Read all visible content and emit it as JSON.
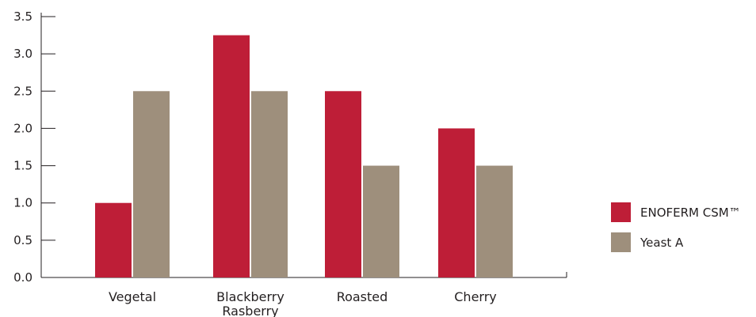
{
  "chart_data": {
    "type": "bar",
    "title": "",
    "xlabel": "",
    "ylabel": "",
    "categories": [
      [
        "Vegetal"
      ],
      [
        "Blackberry",
        "Rasberry"
      ],
      [
        "Roasted"
      ],
      [
        "Cherry"
      ]
    ],
    "series": [
      {
        "name": "ENOFERM CSM™",
        "color": "#be1e37",
        "values": [
          1.0,
          3.25,
          2.5,
          2.0
        ]
      },
      {
        "name": "Yeast A",
        "color": "#9e8f7c",
        "values": [
          2.5,
          2.5,
          1.5,
          1.5
        ]
      }
    ],
    "ylim": [
      0,
      3.5
    ],
    "yticks": [
      "0.0",
      "0.5",
      "1.0",
      "1.5",
      "2.0",
      "2.5",
      "3.0",
      "3.5"
    ],
    "grid": false,
    "legend_position": "right"
  }
}
